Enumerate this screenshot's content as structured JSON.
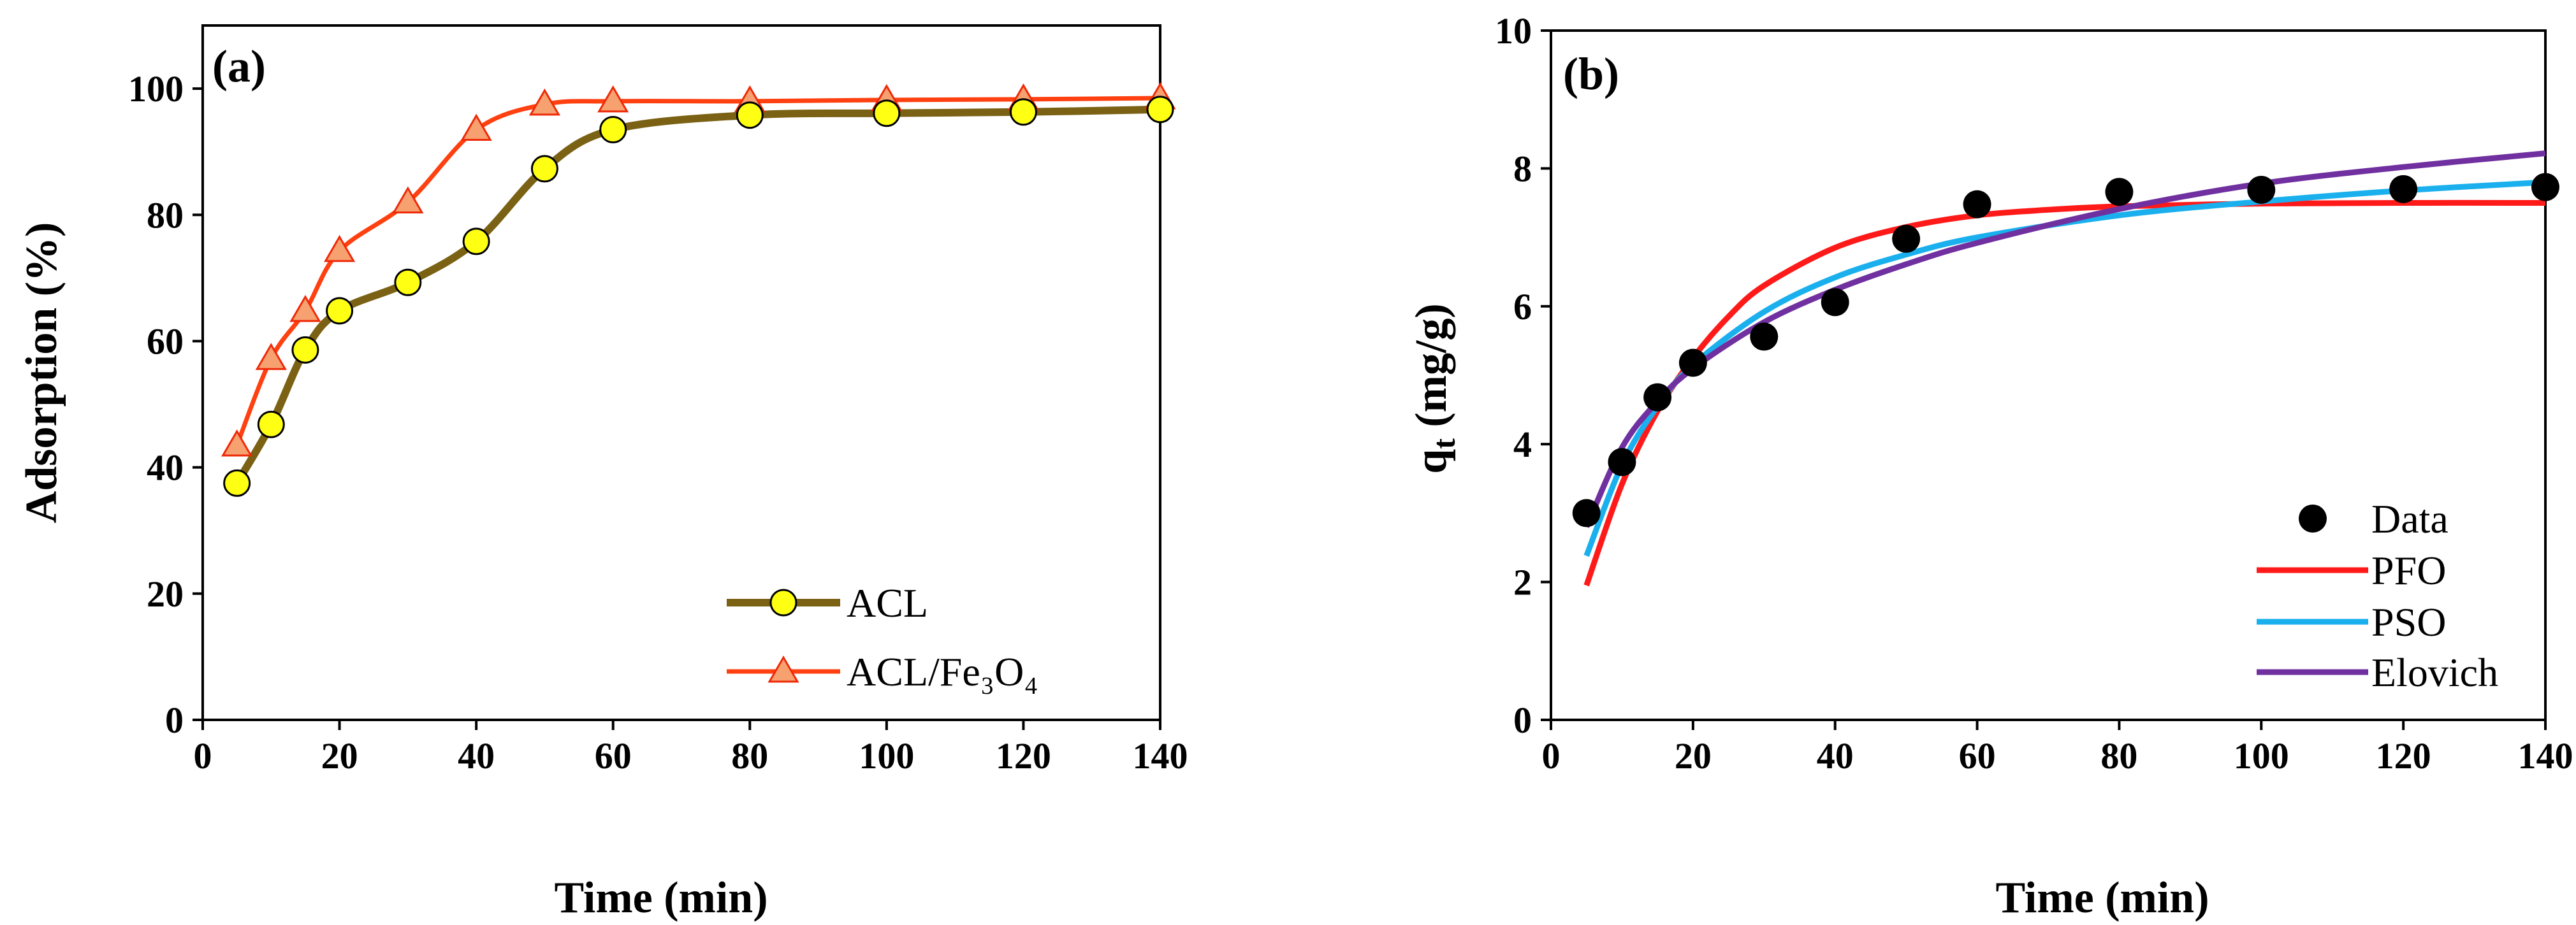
{
  "colors": {
    "acl_line": "#7a6114",
    "acl_marker": "#ffff14",
    "fe_line": "#ff4010",
    "fe_marker": "#f7a070",
    "pfo": "#ff1a1a",
    "pso": "#1ab0ee",
    "elovich": "#7030a0",
    "data_marker": "#000000"
  },
  "chart_data": [
    {
      "type": "line",
      "panel_label": "(a)",
      "xlabel": "Time (min)",
      "ylabel": "Adsorption (%)",
      "xlim": [
        0,
        140
      ],
      "ylim": [
        0,
        110
      ],
      "x_ticks": [
        "0",
        "20",
        "40",
        "60",
        "80",
        "100",
        "120",
        "140"
      ],
      "y_ticks": [
        "0",
        "20",
        "40",
        "60",
        "80",
        "100"
      ],
      "x_tick_values": [
        0,
        20,
        40,
        60,
        80,
        100,
        120,
        140
      ],
      "y_tick_values": [
        0,
        20,
        40,
        60,
        80,
        100
      ],
      "grid": false,
      "legend_position": "bottom-right",
      "series": [
        {
          "name": "ACL",
          "marker": "circle",
          "x": [
            5,
            10,
            15,
            20,
            30,
            40,
            50,
            60,
            80,
            100,
            120,
            140
          ],
          "values": [
            37.5,
            46.8,
            58.6,
            64.8,
            69.3,
            75.8,
            87.3,
            93.5,
            95.8,
            96.1,
            96.3,
            96.7
          ]
        },
        {
          "name": "ACL/Fe₃O₄",
          "marker": "triangle",
          "x": [
            5,
            10,
            15,
            20,
            30,
            40,
            50,
            60,
            80,
            100,
            120,
            140
          ],
          "values": [
            43.5,
            57.2,
            64.8,
            74.3,
            82.0,
            93.5,
            97.5,
            98.0,
            98.0,
            98.2,
            98.3,
            98.5
          ]
        }
      ]
    },
    {
      "type": "scatter",
      "panel_label": "(b)",
      "xlabel": "Time (min)",
      "ylabel_main": "q",
      "ylabel_sub": "t",
      "ylabel_rest": " (mg/g)",
      "xlim": [
        0,
        140
      ],
      "ylim": [
        0,
        10
      ],
      "x_ticks": [
        "0",
        "20",
        "40",
        "60",
        "80",
        "100",
        "120",
        "140"
      ],
      "y_ticks": [
        "0",
        "2",
        "4",
        "6",
        "8",
        "10"
      ],
      "x_tick_values": [
        0,
        20,
        40,
        60,
        80,
        100,
        120,
        140
      ],
      "y_tick_values": [
        0,
        2,
        4,
        6,
        8,
        10
      ],
      "grid": false,
      "legend_position": "bottom-right",
      "series": [
        {
          "name": "Data",
          "kind": "points",
          "x": [
            5,
            10,
            15,
            20,
            30,
            40,
            50,
            60,
            80,
            100,
            120,
            140
          ],
          "values": [
            3.0,
            3.74,
            4.68,
            5.18,
            5.56,
            6.06,
            6.98,
            7.48,
            7.66,
            7.69,
            7.7,
            7.73
          ]
        },
        {
          "name": "PFO",
          "kind": "line",
          "x": [
            5,
            10,
            15,
            20,
            25,
            30,
            40,
            50,
            60,
            70,
            80,
            100,
            120,
            140
          ],
          "values": [
            1.95,
            3.42,
            4.48,
            5.25,
            5.85,
            6.3,
            6.85,
            7.15,
            7.32,
            7.4,
            7.45,
            7.49,
            7.5,
            7.5
          ]
        },
        {
          "name": "PSO",
          "kind": "line",
          "x": [
            5,
            10,
            15,
            20,
            30,
            40,
            50,
            60,
            80,
            100,
            120,
            140
          ],
          "values": [
            2.38,
            3.7,
            4.55,
            5.15,
            5.92,
            6.42,
            6.75,
            7.0,
            7.32,
            7.52,
            7.68,
            7.8
          ]
        },
        {
          "name": "Elovich",
          "kind": "line",
          "x": [
            5,
            10,
            15,
            20,
            30,
            40,
            50,
            60,
            80,
            100,
            120,
            140
          ],
          "values": [
            2.8,
            3.95,
            4.62,
            5.1,
            5.77,
            6.24,
            6.61,
            6.92,
            7.41,
            7.78,
            8.02,
            8.22
          ]
        }
      ]
    }
  ]
}
